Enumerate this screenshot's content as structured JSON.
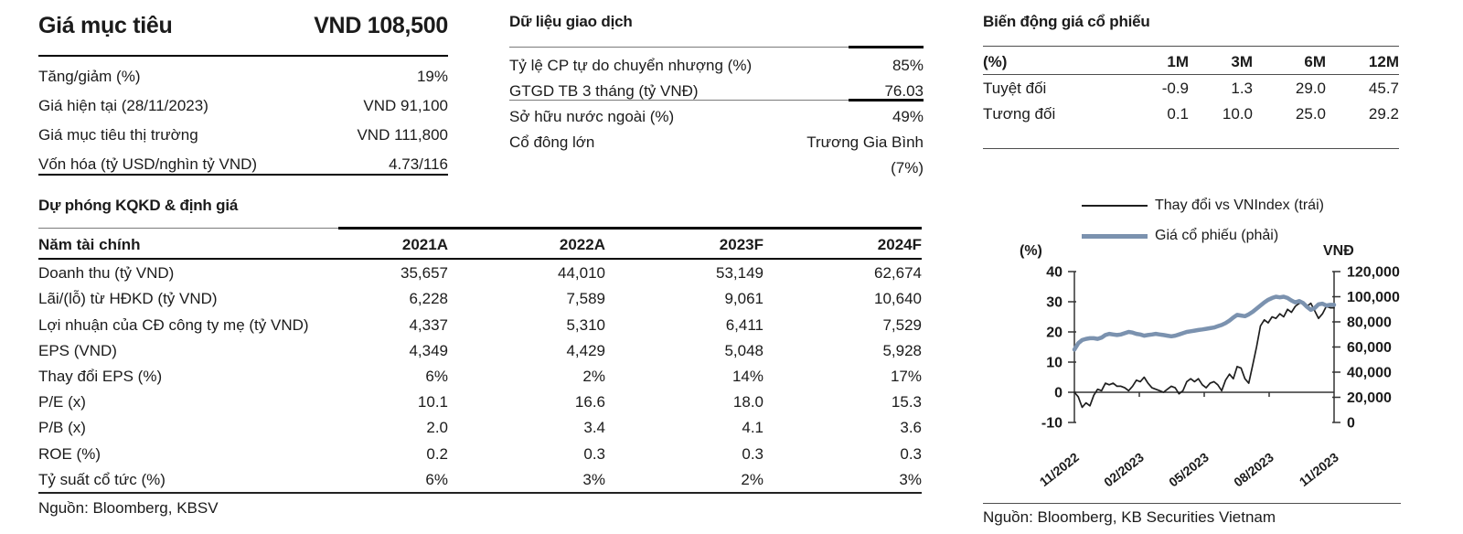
{
  "target_price": {
    "title": "Giá mục tiêu",
    "value": "VND 108,500",
    "rows": [
      {
        "label": "Tăng/giảm (%)",
        "value": "19%"
      },
      {
        "label": "Giá hiện tại (28/11/2023)",
        "value": "VND 91,100"
      },
      {
        "label": "Giá mục tiêu thị trường",
        "value": "VND 111,800"
      },
      {
        "label": "Vốn hóa (tỷ USD/nghìn tỷ VND)",
        "value": "4.73/116"
      }
    ]
  },
  "trading_data": {
    "title": "Dữ liệu giao dịch",
    "rows": [
      {
        "label": "Tỷ lệ CP tự do chuyển nhượng (%)",
        "value": "85%"
      },
      {
        "label": "GTGD TB 3 tháng (tỷ VNĐ)",
        "value": "76.03"
      },
      {
        "label": "Sở hữu nước ngoài (%)",
        "value": "49%"
      },
      {
        "label": "Cổ đông lớn",
        "value": "Trương Gia Bình"
      },
      {
        "label": "",
        "value": "(7%)"
      }
    ]
  },
  "price_movement": {
    "title": "Biến động giá cổ phiếu",
    "headers": [
      "(%)",
      "1M",
      "3M",
      "6M",
      "12M"
    ],
    "rows": [
      {
        "label": "Tuyệt đối",
        "values": [
          "-0.9",
          "1.3",
          "29.0",
          "45.7"
        ]
      },
      {
        "label": "Tương đối",
        "values": [
          "0.1",
          "10.0",
          "25.0",
          "29.2"
        ]
      }
    ]
  },
  "forecast": {
    "title": "Dự phóng KQKD & định giá",
    "headers": [
      "Năm tài chính",
      "2021A",
      "2022A",
      "2023F",
      "2024F"
    ],
    "rows": [
      {
        "label": "Doanh thu (tỷ VND)",
        "values": [
          "35,657",
          "44,010",
          "53,149",
          "62,674"
        ]
      },
      {
        "label": "Lãi/(lỗ) từ HĐKD (tỷ VND)",
        "values": [
          "6,228",
          "7,589",
          "9,061",
          "10,640"
        ]
      },
      {
        "label": "Lợi nhuận của CĐ công ty mẹ (tỷ VND)",
        "values": [
          "4,337",
          "5,310",
          "6,411",
          "7,529"
        ]
      },
      {
        "label": "EPS (VND)",
        "values": [
          "4,349",
          "4,429",
          "5,048",
          "5,928"
        ]
      },
      {
        "label": "Thay đổi EPS (%)",
        "values": [
          "6%",
          "2%",
          "14%",
          "17%"
        ]
      },
      {
        "label": "P/E (x)",
        "values": [
          "10.1",
          "16.6",
          "18.0",
          "15.3"
        ]
      },
      {
        "label": "P/B (x)",
        "values": [
          "2.0",
          "3.4",
          "4.1",
          "3.6"
        ]
      },
      {
        "label": "ROE (%)",
        "values": [
          "0.2",
          "0.3",
          "0.3",
          "0.3"
        ]
      },
      {
        "label": "Tỷ suất cổ tức (%)",
        "values": [
          "6%",
          "3%",
          "2%",
          "3%"
        ]
      }
    ],
    "source": "Nguồn: Bloomberg, KBSV"
  },
  "chart_source": "Nguồn: Bloomberg, KB Securities Vietnam",
  "chart_data": {
    "type": "line",
    "title": "",
    "left_axis": {
      "label": "(%)",
      "min": -10,
      "max": 40,
      "ticks": [
        40,
        30,
        20,
        10,
        0,
        -10
      ]
    },
    "right_axis": {
      "label": "VNĐ",
      "min": 0,
      "max": 120000,
      "ticks": [
        "120,000",
        "100,000",
        "80,000",
        "60,000",
        "40,000",
        "20,000",
        "0"
      ]
    },
    "x_ticks": [
      "11/2022",
      "02/2023",
      "05/2023",
      "08/2023",
      "11/2023"
    ],
    "grid": false,
    "legend_position": "top",
    "legend": [
      {
        "name": "Thay đổi vs VNIndex (trái)",
        "color": "#1f1f1f",
        "stroke_width": 2.5
      },
      {
        "name": "Giá cổ phiếu (phải)",
        "color": "#7b92af",
        "stroke_width": 5
      }
    ],
    "series": [
      {
        "name": "Thay đổi vs VNIndex (trái)",
        "axis": "left",
        "color": "#1f1f1f",
        "stroke_width": 1.7,
        "values": [
          0,
          -1.5,
          -5,
          -3.5,
          -4.5,
          -1,
          1,
          0.5,
          3,
          2.5,
          3,
          2,
          2,
          1.5,
          0.5,
          2,
          4,
          3.5,
          5,
          3,
          1.5,
          1,
          0.5,
          0,
          1,
          2,
          1.5,
          -0.5,
          0.5,
          3.5,
          4.5,
          3.5,
          4.5,
          2.5,
          1.5,
          3,
          3.5,
          2.5,
          0.5,
          4,
          6,
          4.5,
          8.5,
          8,
          4.5,
          3,
          9,
          15,
          22,
          24,
          23,
          25,
          24.5,
          26,
          25,
          27.5,
          26.5,
          28.5,
          29.5,
          30,
          28.5,
          29.5,
          27,
          24.5,
          26,
          28.5,
          28,
          28
        ]
      },
      {
        "name": "Giá cổ phiếu (phải)",
        "axis": "right",
        "color": "#7b92af",
        "stroke_width": 4.5,
        "values": [
          58000,
          63000,
          65500,
          66500,
          67000,
          67000,
          66500,
          67500,
          69500,
          70500,
          70000,
          69500,
          70000,
          71000,
          72000,
          71500,
          70500,
          70000,
          69000,
          69500,
          70000,
          70500,
          70000,
          69500,
          69000,
          68500,
          69000,
          70000,
          71000,
          72000,
          72500,
          73000,
          73500,
          74000,
          74500,
          75000,
          75500,
          76500,
          77500,
          79000,
          81000,
          83500,
          85500,
          85000,
          84500,
          86000,
          88000,
          90500,
          93000,
          95500,
          97500,
          99000,
          100000,
          99500,
          100000,
          99000,
          97000,
          95500,
          96500,
          95000,
          92000,
          89500,
          91000,
          94000,
          94500,
          93000,
          93500,
          93500
        ]
      }
    ]
  }
}
